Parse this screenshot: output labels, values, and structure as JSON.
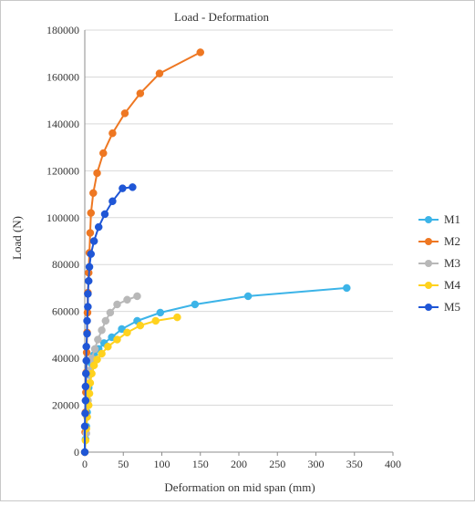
{
  "chart_data": {
    "type": "scatter",
    "title": "Load - Deformation",
    "xlabel": "Deformation on mid span (mm)",
    "ylabel": "Load (N)",
    "xlim": [
      0,
      400
    ],
    "ylim": [
      0,
      180000
    ],
    "x_ticks": [
      "0",
      "50",
      "100",
      "150",
      "200",
      "250",
      "300",
      "350",
      "400"
    ],
    "y_ticks": [
      "0",
      "20000",
      "40000",
      "60000",
      "80000",
      "100000",
      "120000",
      "140000",
      "160000",
      "180000"
    ],
    "grid": "horizontal",
    "legend_position": "right",
    "series": [
      {
        "name": "M1",
        "color": "#3cb4e8",
        "points": [
          [
            0,
            0
          ],
          [
            1,
            5500
          ],
          [
            2,
            11000
          ],
          [
            3,
            17000
          ],
          [
            4,
            22000
          ],
          [
            5,
            27500
          ],
          [
            6,
            33000
          ],
          [
            8,
            38000
          ],
          [
            12,
            41500
          ],
          [
            18,
            44000
          ],
          [
            25,
            46500
          ],
          [
            35,
            49000
          ],
          [
            48,
            52500
          ],
          [
            68,
            56000
          ],
          [
            98,
            59500
          ],
          [
            143,
            63000
          ],
          [
            212,
            66500
          ],
          [
            340,
            70000
          ]
        ]
      },
      {
        "name": "M2",
        "color": "#ee7722",
        "points": [
          [
            0,
            0
          ],
          [
            0.5,
            8500
          ],
          [
            1,
            17000
          ],
          [
            1.5,
            25500
          ],
          [
            2,
            34000
          ],
          [
            2.5,
            42500
          ],
          [
            3,
            51000
          ],
          [
            3.5,
            59500
          ],
          [
            4,
            68000
          ],
          [
            5,
            76500
          ],
          [
            6,
            85000
          ],
          [
            7,
            93500
          ],
          [
            8,
            102000
          ],
          [
            11,
            110500
          ],
          [
            16,
            119000
          ],
          [
            24,
            127500
          ],
          [
            36,
            136000
          ],
          [
            52,
            144500
          ],
          [
            72,
            153000
          ],
          [
            97,
            161500
          ],
          [
            150,
            170500
          ]
        ]
      },
      {
        "name": "M3",
        "color": "#b8b8b8",
        "points": [
          [
            0,
            0
          ],
          [
            2,
            8000
          ],
          [
            3,
            15000
          ],
          [
            4,
            22000
          ],
          [
            5,
            29000
          ],
          [
            7,
            35000
          ],
          [
            9,
            40000
          ],
          [
            13,
            44000
          ],
          [
            17,
            48000
          ],
          [
            22,
            52000
          ],
          [
            27,
            56000
          ],
          [
            33,
            59500
          ],
          [
            42,
            63000
          ],
          [
            55,
            65000
          ],
          [
            68,
            66500
          ]
        ]
      },
      {
        "name": "M4",
        "color": "#ffd21e",
        "points": [
          [
            0,
            0
          ],
          [
            1,
            5000
          ],
          [
            2,
            10000
          ],
          [
            3,
            15000
          ],
          [
            5,
            20000
          ],
          [
            6,
            25000
          ],
          [
            7,
            29500
          ],
          [
            9,
            33500
          ],
          [
            12,
            37000
          ],
          [
            16,
            39500
          ],
          [
            22,
            42000
          ],
          [
            30,
            45000
          ],
          [
            42,
            48000
          ],
          [
            55,
            51000
          ],
          [
            72,
            54000
          ],
          [
            92,
            56000
          ],
          [
            120,
            57500
          ]
        ]
      },
      {
        "name": "M5",
        "color": "#1f56d6",
        "points": [
          [
            0,
            0
          ],
          [
            0,
            11000
          ],
          [
            0.5,
            16500
          ],
          [
            1,
            22000
          ],
          [
            1,
            28000
          ],
          [
            1.5,
            33500
          ],
          [
            2,
            39000
          ],
          [
            2,
            45000
          ],
          [
            3,
            50500
          ],
          [
            3,
            56000
          ],
          [
            4,
            62000
          ],
          [
            4,
            67500
          ],
          [
            5,
            73000
          ],
          [
            6,
            79000
          ],
          [
            8,
            84500
          ],
          [
            12,
            90000
          ],
          [
            18,
            96000
          ],
          [
            26,
            101500
          ],
          [
            36,
            107000
          ],
          [
            49,
            112500
          ],
          [
            62,
            113000
          ]
        ]
      }
    ]
  }
}
